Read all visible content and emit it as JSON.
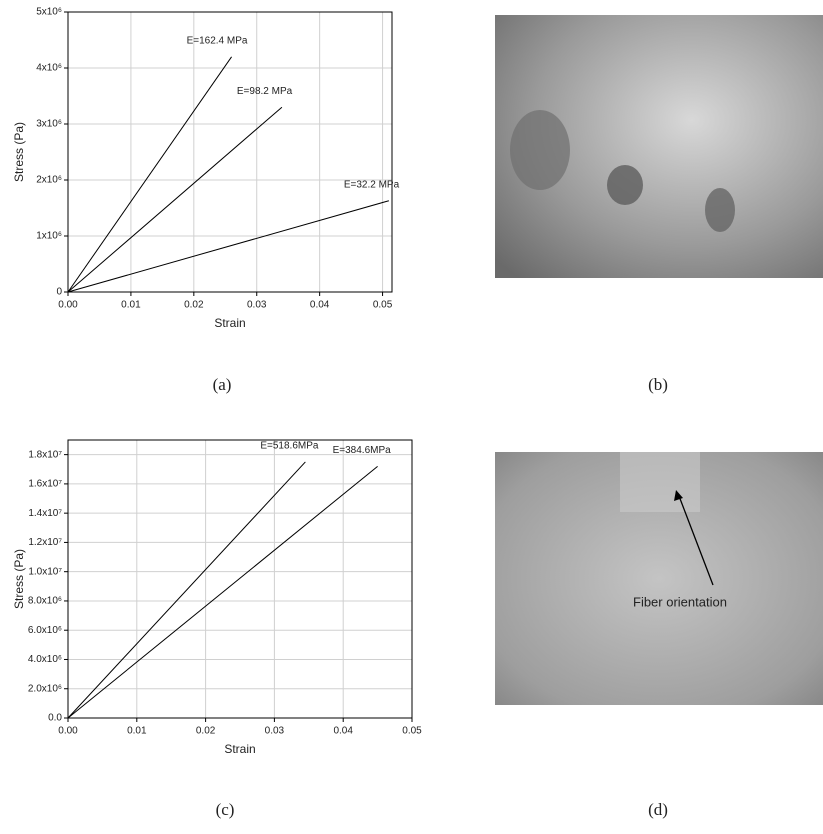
{
  "chart_data": [
    {
      "type": "line",
      "x_label": "Strain",
      "y_label": "Stress (Pa)",
      "grid": true,
      "xlim": [
        0,
        0.0515
      ],
      "ylim": [
        0,
        5000000
      ],
      "xticks": [
        {
          "value": 0,
          "label": "0.00"
        },
        {
          "value": 0.01,
          "label": "0.01"
        },
        {
          "value": 0.02,
          "label": "0.02"
        },
        {
          "value": 0.03,
          "label": "0.03"
        },
        {
          "value": 0.04,
          "label": "0.04"
        },
        {
          "value": 0.05,
          "label": "0.05"
        }
      ],
      "yticks": [
        0,
        {
          "value": 1000000,
          "label": "1x10⁶"
        },
        {
          "value": 2000000,
          "label": "2x10⁶"
        },
        {
          "value": 3000000,
          "label": "3x10⁶"
        },
        {
          "value": 4000000,
          "label": "4x10⁶"
        },
        {
          "value": 5000000,
          "label": "5x10⁶"
        }
      ],
      "series": [
        {
          "color": "#000000",
          "x": [
            0,
            0.026
          ],
          "values": [
            0,
            4200000
          ]
        },
        {
          "color": "#000000",
          "x": [
            0,
            0.034
          ],
          "values": [
            0,
            3300000
          ]
        },
        {
          "color": "#000000",
          "x": [
            0,
            0.051
          ],
          "values": [
            0,
            1630000
          ]
        }
      ],
      "annotations": [
        "E=162.4 MPa",
        "E=98.2 MPa",
        "E=32.2 MPa"
      ]
    },
    {
      "type": "line",
      "x_label": "Strain",
      "y_label": "Stress (Pa)",
      "grid": true,
      "xlim": [
        0,
        0.05
      ],
      "ylim": [
        0,
        19000000
      ],
      "xticks": [
        {
          "value": 0,
          "label": "0.00"
        },
        {
          "value": 0.01,
          "label": "0.01"
        },
        {
          "value": 0.02,
          "label": "0.02"
        },
        {
          "value": 0.03,
          "label": "0.03"
        },
        {
          "value": 0.04,
          "label": "0.04"
        },
        {
          "value": 0.05,
          "label": "0.05"
        }
      ],
      "yticks": [
        {
          "value": 0,
          "label": "0.0"
        },
        {
          "value": 2000000,
          "label": "2.0x10⁶"
        },
        {
          "value": 4000000,
          "label": "4.0x10⁶"
        },
        {
          "value": 6000000,
          "label": "6.0x10⁶"
        },
        {
          "value": 8000000,
          "label": "8.0x10⁶"
        },
        {
          "value": 10000000,
          "label": "1.0x10⁷"
        },
        {
          "value": 12000000,
          "label": "1.2x10⁷"
        },
        {
          "value": 14000000,
          "label": "1.4x10⁷"
        },
        {
          "value": 16000000,
          "label": "1.6x10⁷"
        },
        {
          "value": 18000000,
          "label": "1.8x10⁷"
        }
      ],
      "series": [
        {
          "color": "#000000",
          "x": [
            0,
            0.0345
          ],
          "values": [
            0,
            17500000
          ]
        },
        {
          "color": "#000000",
          "x": [
            0,
            0.045
          ],
          "values": [
            0,
            17200000
          ]
        }
      ],
      "annotations": [
        "E=518.6MPa",
        "E=384.6MPa"
      ]
    }
  ],
  "panels": {
    "labels": [
      "(a)",
      "(b)",
      "(c)",
      "(d)"
    ],
    "annotation": "Fiber orientation"
  }
}
